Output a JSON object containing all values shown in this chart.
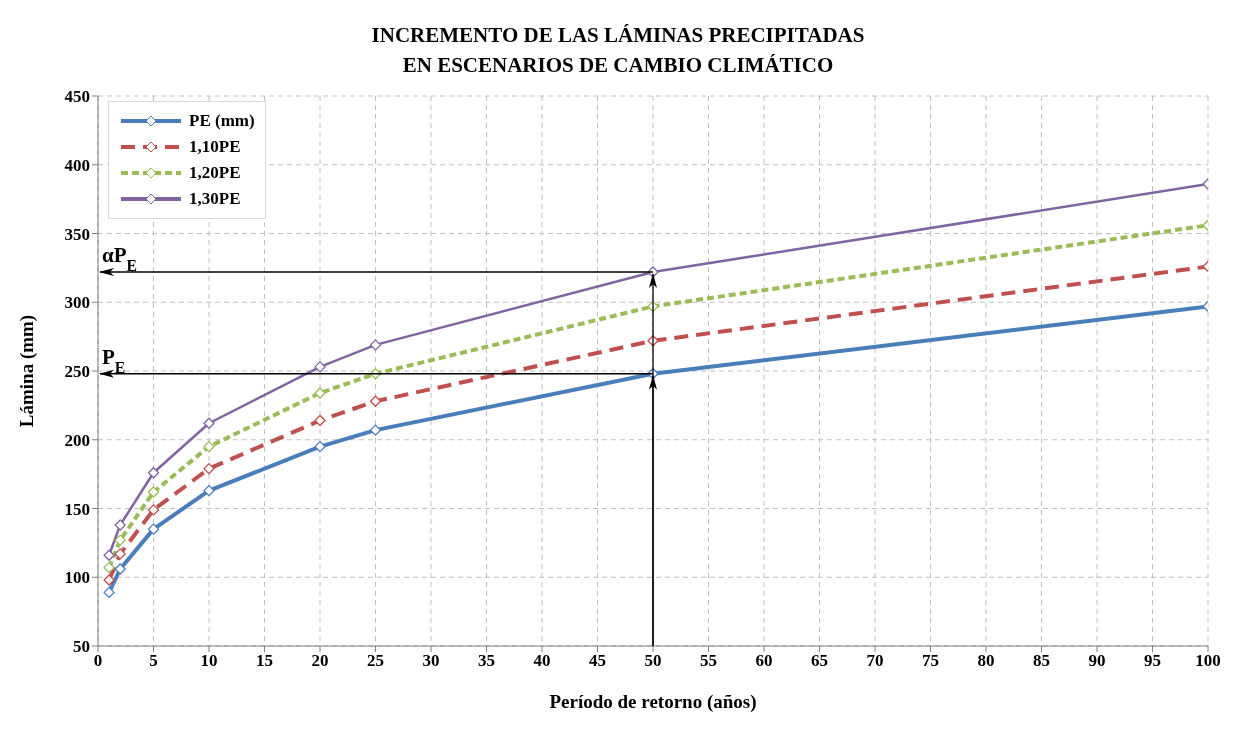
{
  "chart_data": {
    "type": "line",
    "title": "INCREMENTO DE LAS LÁMINAS PRECIPITADAS\nEN ESCENARIOS DE CAMBIO CLIMÁTICO",
    "xlabel": "Período de retorno (años)",
    "ylabel": "Lámina  (mm)",
    "x": [
      1,
      2,
      5,
      10,
      20,
      25,
      50,
      100
    ],
    "series": [
      {
        "name": "PE (mm)",
        "color": "#4a7ebb",
        "line_style": "solid",
        "values": [
          89,
          106,
          135,
          163,
          195,
          207,
          248,
          297
        ]
      },
      {
        "name": "1,10PE",
        "color": "#c0504d",
        "line_style": "dashed",
        "values": [
          98,
          117,
          149,
          179,
          214,
          228,
          272,
          326
        ]
      },
      {
        "name": "1,20PE",
        "color": "#9bbb59",
        "line_style": "dotted",
        "values": [
          107,
          127,
          162,
          195,
          234,
          248,
          297,
          356
        ]
      },
      {
        "name": "1,30PE",
        "color": "#8064a2",
        "line_style": "solid",
        "values": [
          116,
          138,
          176,
          212,
          253,
          269,
          322,
          386
        ]
      }
    ],
    "xlim": [
      0,
      100
    ],
    "xticks": [
      0,
      5,
      10,
      15,
      20,
      25,
      30,
      35,
      40,
      45,
      50,
      55,
      60,
      65,
      70,
      75,
      80,
      85,
      90,
      95,
      100
    ],
    "ylim": [
      50,
      450
    ],
    "yticks": [
      50,
      100,
      150,
      200,
      250,
      300,
      350,
      400,
      450
    ],
    "annotations": [
      {
        "text": "αP$_{E}$",
        "x": 50,
        "y": 322
      },
      {
        "text": "P$_{E}$",
        "x": 50,
        "y": 248
      }
    ],
    "grid": true,
    "legend": "top left",
    "marker": "diamond"
  }
}
